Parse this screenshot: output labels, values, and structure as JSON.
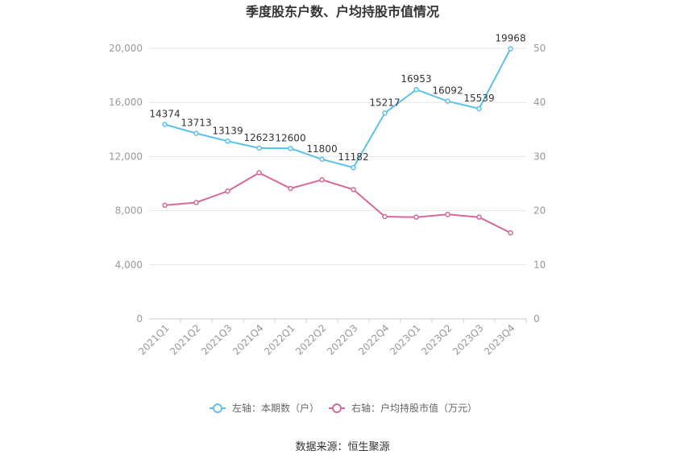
{
  "chart_data": {
    "type": "line",
    "title": "季度股东户数、户均持股市值情况",
    "categories": [
      "2021Q1",
      "2021Q2",
      "2021Q3",
      "2021Q4",
      "2022Q1",
      "2022Q2",
      "2022Q3",
      "2022Q4",
      "2023Q1",
      "2023Q2",
      "2023Q3",
      "2023Q4"
    ],
    "left_axis": {
      "ylim": [
        0,
        20000
      ],
      "ticks": [
        "0",
        "4,000",
        "8,000",
        "12,000",
        "16,000",
        "20,000"
      ],
      "tick_values": [
        0,
        4000,
        8000,
        12000,
        16000,
        20000
      ]
    },
    "right_axis": {
      "ylim": [
        0,
        50
      ],
      "ticks": [
        "0",
        "10",
        "20",
        "30",
        "40",
        "50"
      ],
      "tick_values": [
        0,
        10,
        20,
        30,
        40,
        50
      ]
    },
    "series": [
      {
        "name": "左轴：本期数（户）",
        "axis": "left",
        "color": "#5bc0eb",
        "values": [
          14374,
          13713,
          13139,
          12623,
          12600,
          11800,
          11182,
          15217,
          16953,
          16092,
          15539,
          19968
        ],
        "labels": [
          "14374",
          "13713",
          "13139",
          "12623",
          "12600",
          "11800",
          "11182",
          "15217",
          "16953",
          "16092",
          "15539",
          "19968"
        ]
      },
      {
        "name": "右轴：户均持股市值（万元）",
        "axis": "right",
        "color": "#d6689c",
        "values": [
          21.0,
          21.5,
          23.6,
          27.0,
          24.1,
          25.7,
          23.9,
          18.9,
          18.8,
          19.3,
          18.8,
          15.9
        ]
      }
    ],
    "grid": true,
    "legend_position": "bottom"
  },
  "source": "数据来源：恒生聚源"
}
